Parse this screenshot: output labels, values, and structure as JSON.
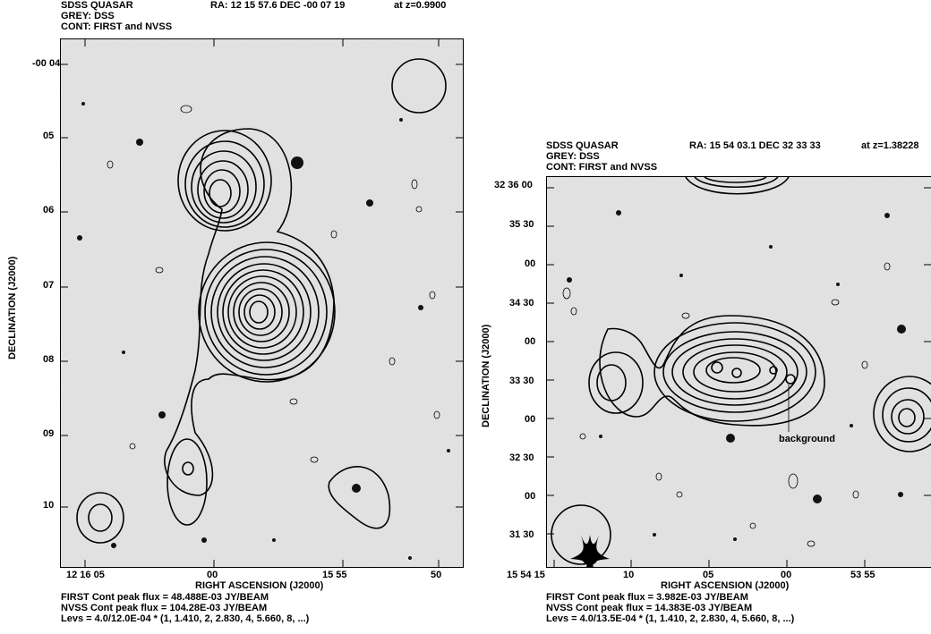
{
  "panels": [
    {
      "header_left": [
        "SDSS QUASAR",
        "GREY: DSS",
        "CONT: FIRST and NVSS"
      ],
      "header_ra": "RA: 12 15 57.6 DEC -00 07 19",
      "header_z": "at z=0.9900",
      "y_ticks": [
        "-00 04",
        "05",
        "06",
        "07",
        "08",
        "09",
        "10"
      ],
      "x_ticks": [
        "12 16 05",
        "00",
        "15 55",
        "50"
      ],
      "x_axis_label": "RIGHT ASCENSION (J2000)",
      "y_axis_label": "DECLINATION (J2000)",
      "footer": [
        "FIRST Cont peak flux =  48.488E-03 JY/BEAM",
        "NVSS Cont peak flux =  104.28E-03 JY/BEAM",
        "Levs = 4.0/12.0E-04 * (1, 1.410, 2, 2.830, 4, 5.660, 8, ...)"
      ]
    },
    {
      "header_left": [
        "SDSS QUASAR",
        "GREY: DSS",
        "CONT: FIRST and NVSS"
      ],
      "header_ra": "RA: 15 54 03.1 DEC 32 33 33",
      "header_z": "at z=1.38228",
      "y_ticks": [
        "32 36 00",
        "35 30",
        "00",
        "34 30",
        "00",
        "33 30",
        "00",
        "32 30",
        "00",
        "31 30"
      ],
      "x_ticks": [
        "15 54 15",
        "10",
        "05",
        "00",
        "53 55"
      ],
      "x_axis_label": "RIGHT ASCENSION (J2000)",
      "y_axis_label": "DECLINATION (J2000)",
      "annotation": "background",
      "footer": [
        "FIRST Cont peak flux =  3.982E-03 JY/BEAM",
        "NVSS Cont peak flux =  14.383E-03 JY/BEAM",
        "Levs = 4.0/13.5E-04 * (1, 1.410, 2, 2.830, 4, 5.660, 8, ...)"
      ]
    }
  ]
}
